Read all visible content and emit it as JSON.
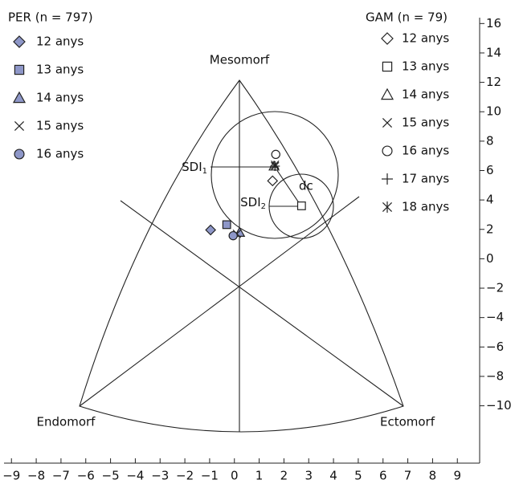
{
  "chart_data": {
    "type": "scatter",
    "xlim": [
      -9.3,
      9.9
    ],
    "ylim": [
      -13.9,
      16.4
    ],
    "xticks": [
      {
        "value": -9,
        "label": "−9"
      },
      {
        "value": -8,
        "label": "−8"
      },
      {
        "value": -7,
        "label": "−7"
      },
      {
        "value": -6,
        "label": "−6"
      },
      {
        "value": -5,
        "label": "−5"
      },
      {
        "value": -4,
        "label": "−4"
      },
      {
        "value": -3,
        "label": "−3"
      },
      {
        "value": -2,
        "label": "−2"
      },
      {
        "value": -1,
        "label": "−1"
      },
      0,
      1,
      2,
      3,
      4,
      5,
      6,
      7,
      8,
      9
    ],
    "yticks": [
      16,
      14,
      12,
      10,
      8,
      6,
      4,
      2,
      0,
      {
        "value": -2,
        "label": "−2"
      },
      {
        "value": -4,
        "label": "−4"
      },
      {
        "value": -6,
        "label": "−6"
      },
      {
        "value": -8,
        "label": "−8"
      },
      {
        "value": -10,
        "label": "−10"
      }
    ],
    "regions": [
      "Mesomorf",
      "Endomorf",
      "Ectomorf"
    ],
    "annotations": [
      {
        "text": "SDI",
        "subscript": "1"
      },
      {
        "text": "SDI",
        "subscript": "2"
      },
      {
        "text": "dc"
      }
    ],
    "groups": [
      {
        "title": "PER (n = 797)",
        "fill": "#8e97c8",
        "series": [
          {
            "name": "12 anys",
            "marker": "diamond",
            "x": [
              -0.96
            ],
            "y": [
              1.96
            ]
          },
          {
            "name": "13 anys",
            "marker": "square",
            "x": [
              -0.31
            ],
            "y": [
              2.32
            ]
          },
          {
            "name": "14 anys",
            "marker": "triangle",
            "x": [
              0.21
            ],
            "y": [
              1.79
            ]
          },
          {
            "name": "15 anys",
            "marker": "cross",
            "x": [
              0.1
            ],
            "y": [
              1.7
            ]
          },
          {
            "name": "16 anys",
            "marker": "circle",
            "x": [
              -0.05
            ],
            "y": [
              1.57
            ]
          }
        ]
      },
      {
        "title": "GAM (n = 79)",
        "fill": "#ffffff",
        "series": [
          {
            "name": "12 anys",
            "marker": "diamond",
            "x": [
              1.54
            ],
            "y": [
              5.3
            ]
          },
          {
            "name": "13 anys",
            "marker": "square",
            "x": [
              2.71
            ],
            "y": [
              3.6
            ]
          },
          {
            "name": "14 anys",
            "marker": "triangle",
            "x": [
              1.6
            ],
            "y": [
              6.3
            ]
          },
          {
            "name": "15 anys",
            "marker": "cross",
            "x": [
              1.64
            ],
            "y": [
              6.4
            ]
          },
          {
            "name": "16 anys",
            "marker": "circle",
            "x": [
              1.67
            ],
            "y": [
              7.1
            ]
          },
          {
            "name": "17 anys",
            "marker": "plus",
            "x": [
              1.64
            ],
            "y": [
              6.3
            ]
          },
          {
            "name": "18 anys",
            "marker": "asterisk",
            "x": [
              1.64
            ],
            "y": [
              6.3
            ]
          }
        ]
      }
    ]
  }
}
